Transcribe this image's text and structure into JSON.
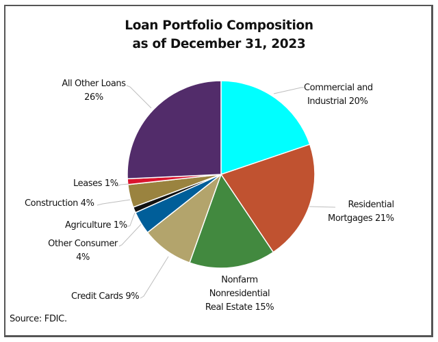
{
  "chart_data": {
    "type": "pie",
    "title": "Loan Portfolio Composition",
    "subtitle": "as of December 31, 2023",
    "start_angle_deg": 0,
    "direction": "clockwise",
    "categories": [
      "Commercial and Industrial",
      "Residential Mortgages",
      "Nonfarm Nonresidential Real Estate",
      "Credit Cards",
      "Other Consumer",
      "Agriculture",
      "Construction",
      "Leases",
      "All Other Loans"
    ],
    "values": [
      20,
      21,
      15,
      9,
      4,
      1,
      4,
      1,
      26
    ],
    "unit": "%",
    "colors": [
      "#00FFFF",
      "#C05230",
      "#42893F",
      "#B3A46C",
      "#005E99",
      "#111111",
      "#9A833F",
      "#D9142E",
      "#522C6A"
    ],
    "source": "Source: FDIC.",
    "legend": "none (leader-line data labels)"
  },
  "title": {
    "line1": "Loan Portfolio Composition",
    "line2": "as of December 31, 2023"
  },
  "labels": {
    "commercial": {
      "line1": "Commercial and",
      "line2": "Industrial  20%"
    },
    "residential": {
      "line1": "Residential",
      "line2": "Mortgages 21%"
    },
    "nonfarm": {
      "line1": "Nonfarm",
      "line2": "Nonresidential",
      "line3": "Real Estate 15%"
    },
    "credit_cards": {
      "line1": "Credit Cards 9%"
    },
    "other_consumer": {
      "line1": "Other Consumer",
      "line2": "4%"
    },
    "agriculture": {
      "line1": "Agriculture 1%"
    },
    "construction": {
      "line1": "Construction 4%"
    },
    "leases": {
      "line1": "Leases 1%"
    },
    "all_other": {
      "line1": "All Other Loans",
      "line2": "26%"
    }
  },
  "source": "Source: FDIC."
}
